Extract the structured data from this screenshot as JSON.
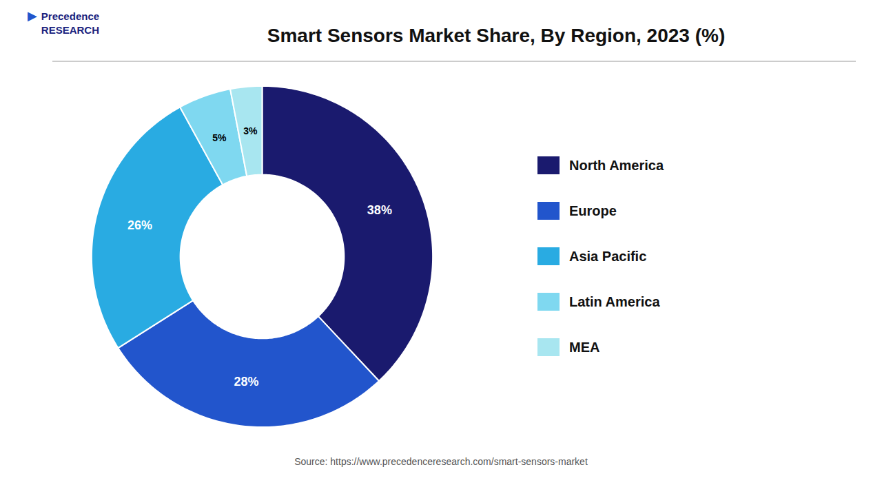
{
  "chart_data": {
    "type": "donut",
    "title": "Smart Sensors Market Share, By Region, 2023 (%)",
    "categories": [
      "North America",
      "Europe",
      "Asia Pacific",
      "Latin America",
      "MEA"
    ],
    "values": [
      38,
      28,
      26,
      5,
      3
    ],
    "value_labels": [
      "38%",
      "28%",
      "26%",
      "5%",
      "3%"
    ],
    "colors": [
      "#1a1a6e",
      "#2255cc",
      "#29abe2",
      "#7fd8f0",
      "#a8e6f0"
    ],
    "data_labels": true,
    "legend": "right",
    "annotations": [
      "Precedence\nRESEARCH",
      "▶",
      "Source: https://www.precedenceresearch.com/smart-sensors-market"
    ]
  }
}
